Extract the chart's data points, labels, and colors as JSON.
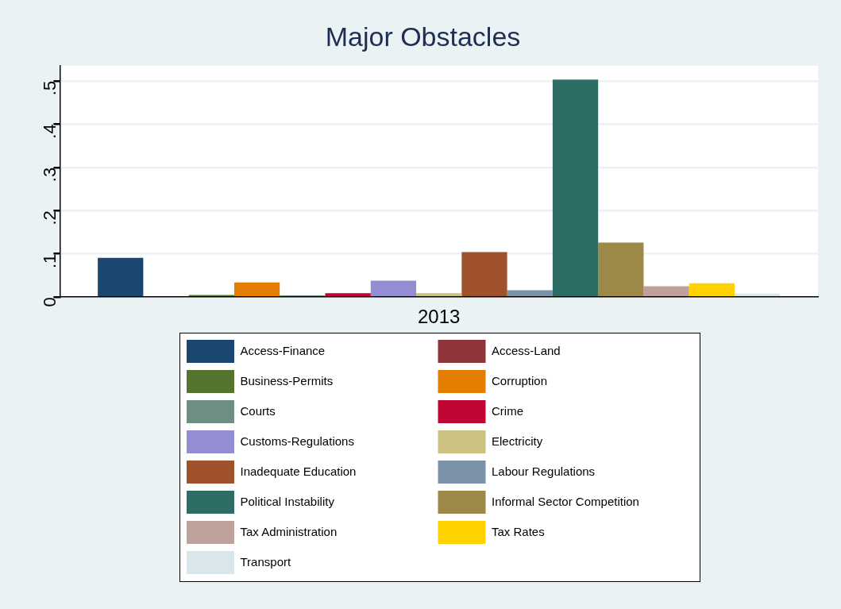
{
  "chart_data": {
    "type": "bar",
    "title": "Major Obstacles",
    "categories": [
      "2013"
    ],
    "series": [
      {
        "name": "Access-Finance",
        "color": "#1a476f",
        "values": [
          0.091
        ]
      },
      {
        "name": "Access-Land",
        "color": "#90353b",
        "values": [
          0.002
        ]
      },
      {
        "name": "Business-Permits",
        "color": "#55752f",
        "values": [
          0.005
        ]
      },
      {
        "name": "Corruption",
        "color": "#e37e00",
        "values": [
          0.034
        ]
      },
      {
        "name": "Courts",
        "color": "#6e8e84",
        "values": [
          0.004
        ]
      },
      {
        "name": "Crime",
        "color": "#c10534",
        "values": [
          0.009
        ]
      },
      {
        "name": "Customs-Regulations",
        "color": "#938dd2",
        "values": [
          0.038
        ]
      },
      {
        "name": "Electricity",
        "color": "#cac27e",
        "values": [
          0.009
        ]
      },
      {
        "name": "Inadequate Education",
        "color": "#a0522d",
        "values": [
          0.104
        ]
      },
      {
        "name": "Labour Regulations",
        "color": "#7b92a8",
        "values": [
          0.016
        ]
      },
      {
        "name": "Political Instability",
        "color": "#2d6d66",
        "values": [
          0.503
        ]
      },
      {
        "name": "Informal Sector Competition",
        "color": "#9c8847",
        "values": [
          0.126
        ]
      },
      {
        "name": "Tax Administration",
        "color": "#bfa19c",
        "values": [
          0.025
        ]
      },
      {
        "name": "Tax Rates",
        "color": "#ffd200",
        "values": [
          0.032
        ]
      },
      {
        "name": "Transport",
        "color": "#d9e6eb",
        "values": [
          0.008
        ]
      }
    ],
    "ylim": [
      0,
      0.535
    ],
    "yticks": [
      0,
      {
        "value": 0.1,
        "label": ".1"
      },
      {
        "value": 0.2,
        "label": ".2"
      },
      {
        "value": 0.3,
        "label": ".3"
      },
      {
        "value": 0.4,
        "label": ".4"
      },
      {
        "value": 0.5,
        "label": ".5"
      }
    ],
    "grid": "y",
    "legend": "bottom"
  }
}
